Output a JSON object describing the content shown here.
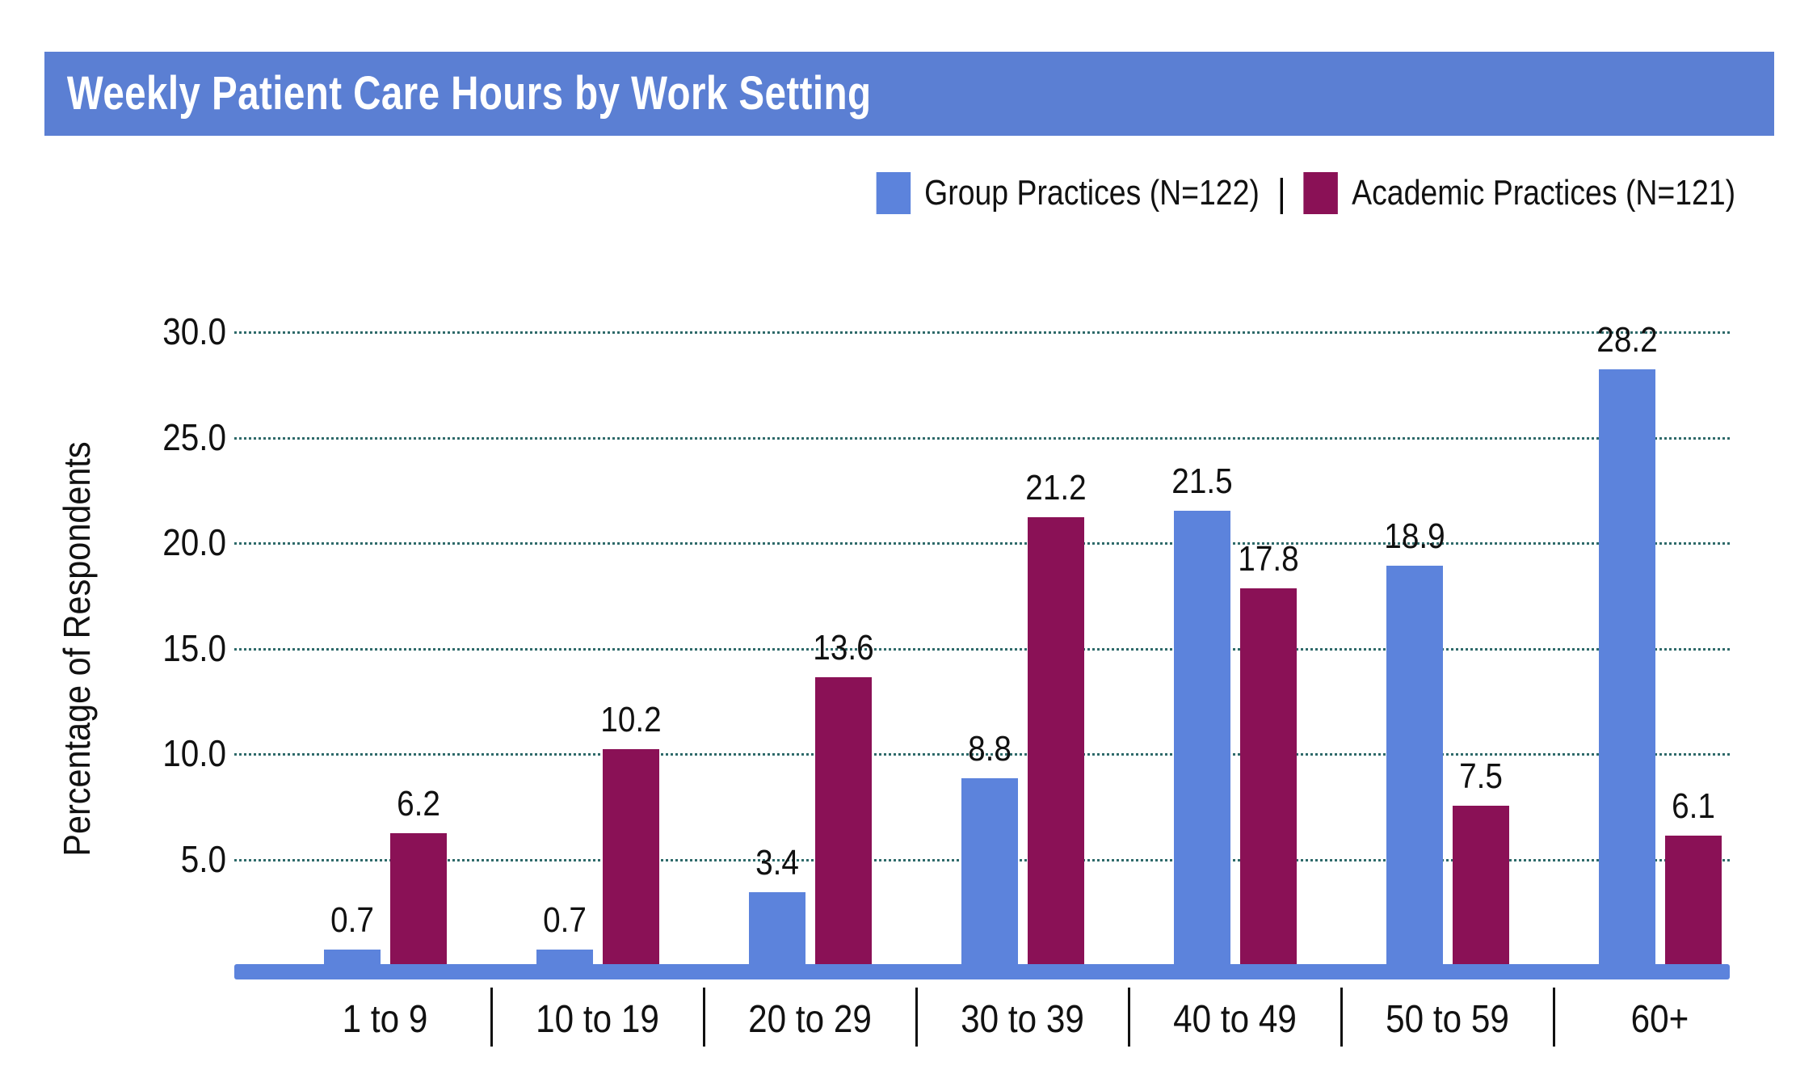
{
  "legend": {
    "separator": "|"
  },
  "colors": {
    "header_bg": "#5B7FD3",
    "header_text": "#FFFFFF",
    "axis_line": "#5C83DC",
    "gridline": "#2E6A6A",
    "separator_line": "#111111",
    "group_practices_blue": "#5C83DC",
    "academic_practices_maroon": "#8A1156"
  },
  "chart_data": {
    "type": "bar",
    "title": "Weekly Patient Care Hours by Work Setting",
    "categories": [
      "1 to 9",
      "10 to 19",
      "20 to 29",
      "30 to 39",
      "40 to 49",
      "50 to 59",
      "60+"
    ],
    "series": [
      {
        "name": "Group Practices (N=122)",
        "color": "#5C83DC",
        "values": [
          0.7,
          0.7,
          3.4,
          8.8,
          21.5,
          18.9,
          28.2
        ]
      },
      {
        "name": "Academic Practices (N=121)",
        "color": "#8A1156",
        "values": [
          6.2,
          10.2,
          13.6,
          21.2,
          17.8,
          7.5,
          6.1
        ]
      }
    ],
    "xlabel": "",
    "ylabel": "Percentage of Respondents",
    "ylim": [
      0,
      30
    ],
    "yticks": [
      5.0,
      10.0,
      15.0,
      20.0,
      25.0,
      30.0
    ],
    "ytick_labels": [
      "5.0",
      "10.0",
      "15.0",
      "20.0",
      "25.0",
      "30.0"
    ],
    "grid": "dotted-horizontal",
    "legend_position": "top-right",
    "value_labels": true
  }
}
